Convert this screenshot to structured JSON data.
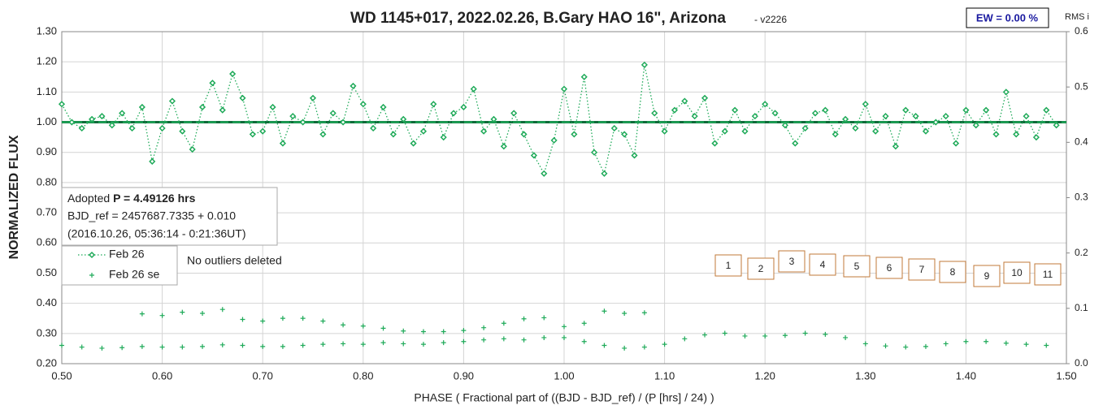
{
  "chart_data": {
    "type": "scatter",
    "title": "WD 1145+017, 2022.02.26, B.Gary HAO 16\", Arizona",
    "subtitle": "- v2226",
    "badge": "EW = 0.00 %",
    "y2_label": "RMS i",
    "xlabel": "PHASE ( Fractional part of ((BJD - BJD_ref) / (P [hrs] / 24) )",
    "ylabel": "NORMALIZED FLUX",
    "info": {
      "prefix": "Adopted ",
      "period": "P = 4.49126 hrs",
      "line2": "BJD_ref = 2457687.7335 + 0.010",
      "line3": "(2016.10.26, 05:36:14 - 0:21:36UT)"
    },
    "note": "No outliers deleted",
    "boxes": [
      "1",
      "2",
      "3",
      "4",
      "5",
      "6",
      "7",
      "8",
      "9",
      "10",
      "11"
    ],
    "hlines": [
      1.0
    ],
    "xlim": [
      0.5,
      1.5
    ],
    "xticks": [
      {
        "value": 0.5,
        "label": "0.50"
      },
      {
        "value": 0.6,
        "label": "0.60"
      },
      {
        "value": 0.7,
        "label": "0.70"
      },
      {
        "value": 0.8,
        "label": "0.80"
      },
      {
        "value": 0.9,
        "label": "0.90"
      },
      {
        "value": 1.0,
        "label": "1.00"
      },
      {
        "value": 1.1,
        "label": "1.10"
      },
      {
        "value": 1.2,
        "label": "1.20"
      },
      {
        "value": 1.3,
        "label": "1.30"
      },
      {
        "value": 1.4,
        "label": "1.40"
      },
      {
        "value": 1.5,
        "label": "1.50"
      }
    ],
    "ylim": [
      0.2,
      1.3
    ],
    "yticks": [
      {
        "value": 0.2,
        "label": "0.20"
      },
      {
        "value": 0.3,
        "label": "0.30"
      },
      {
        "value": 0.4,
        "label": "0.40"
      },
      {
        "value": 0.5,
        "label": "0.50"
      },
      {
        "value": 0.6,
        "label": "0.60"
      },
      {
        "value": 0.7,
        "label": "0.70"
      },
      {
        "value": 0.8,
        "label": "0.80"
      },
      {
        "value": 0.9,
        "label": "0.90"
      },
      {
        "value": 1.0,
        "label": "1.00"
      },
      {
        "value": 1.1,
        "label": "1.10"
      },
      {
        "value": 1.2,
        "label": "1.20"
      },
      {
        "value": 1.3,
        "label": "1.30"
      }
    ],
    "y2lim": [
      0,
      0.6
    ],
    "y2ticks": [
      {
        "value": 0,
        "label": "0.0"
      },
      0.1,
      0.2,
      0.3,
      0.4,
      0.5,
      0.6
    ],
    "grid": true,
    "series": [
      {
        "name": "Feb 26",
        "color": "#1faa59",
        "marker": "diamond",
        "line": "dotted",
        "x": [
          0.5,
          0.51,
          0.52,
          0.53,
          0.54,
          0.55,
          0.56,
          0.57,
          0.58,
          0.59,
          0.6,
          0.61,
          0.62,
          0.63,
          0.64,
          0.65,
          0.66,
          0.67,
          0.68,
          0.69,
          0.7,
          0.71,
          0.72,
          0.73,
          0.74,
          0.75,
          0.76,
          0.77,
          0.78,
          0.79,
          0.8,
          0.81,
          0.82,
          0.83,
          0.84,
          0.85,
          0.86,
          0.87,
          0.88,
          0.89,
          0.9,
          0.91,
          0.92,
          0.93,
          0.94,
          0.95,
          0.96,
          0.97,
          0.98,
          0.99,
          1.0,
          1.01,
          1.02,
          1.03,
          1.04,
          1.05,
          1.06,
          1.07,
          1.08,
          1.09,
          1.1,
          1.11,
          1.12,
          1.13,
          1.14,
          1.15,
          1.16,
          1.17,
          1.18,
          1.19,
          1.2,
          1.21,
          1.22,
          1.23,
          1.24,
          1.25,
          1.26,
          1.27,
          1.28,
          1.29,
          1.3,
          1.31,
          1.32,
          1.33,
          1.34,
          1.35,
          1.36,
          1.37,
          1.38,
          1.39,
          1.4,
          1.41,
          1.42,
          1.43,
          1.44,
          1.45,
          1.46,
          1.47,
          1.48,
          1.49
        ],
        "values": [
          1.06,
          1.0,
          0.98,
          1.01,
          1.02,
          0.99,
          1.03,
          0.98,
          1.05,
          0.87,
          0.98,
          1.07,
          0.97,
          0.91,
          1.05,
          1.13,
          1.04,
          1.16,
          1.08,
          0.96,
          0.97,
          1.05,
          0.93,
          1.02,
          1.0,
          1.08,
          0.96,
          1.03,
          1.0,
          1.12,
          1.06,
          0.98,
          1.05,
          0.96,
          1.01,
          0.93,
          0.97,
          1.06,
          0.95,
          1.03,
          1.05,
          1.11,
          0.97,
          1.01,
          0.92,
          1.03,
          0.96,
          0.89,
          0.83,
          0.94,
          1.11,
          0.96,
          1.15,
          0.9,
          0.83,
          0.98,
          0.96,
          0.89,
          1.19,
          1.03,
          0.97,
          1.04,
          1.07,
          1.02,
          1.08,
          0.93,
          0.97,
          1.04,
          0.97,
          1.02,
          1.06,
          1.03,
          0.99,
          0.93,
          0.98,
          1.03,
          1.04,
          0.96,
          1.01,
          0.98,
          1.06,
          0.97,
          1.02,
          0.92,
          1.04,
          1.02,
          0.97,
          1.0,
          1.02,
          0.93,
          1.04,
          0.99,
          1.04,
          0.96,
          1.1,
          0.96,
          1.02,
          0.95,
          1.04,
          0.99
        ]
      },
      {
        "name": "Feb 26 se",
        "color": "#1faa59",
        "marker": "plus",
        "axis": "y2",
        "x": [
          0.5,
          0.52,
          0.54,
          0.56,
          0.58,
          0.6,
          0.62,
          0.64,
          0.66,
          0.68,
          0.7,
          0.72,
          0.74,
          0.76,
          0.78,
          0.8,
          0.82,
          0.84,
          0.86,
          0.88,
          0.9,
          0.92,
          0.94,
          0.96,
          0.98,
          1.0,
          1.02,
          1.04,
          1.06,
          1.08,
          1.1,
          1.12,
          1.14,
          1.16,
          1.18,
          1.2,
          1.22,
          1.24,
          1.26,
          1.28,
          1.3,
          1.32,
          1.34,
          1.36,
          1.38,
          1.4,
          1.42,
          1.44,
          1.46,
          1.48,
          0.58,
          0.6,
          0.62,
          0.64,
          0.66,
          0.68,
          0.7,
          0.72,
          0.74,
          0.76,
          0.78,
          0.8,
          0.82,
          0.84,
          0.86,
          0.88,
          0.9,
          0.92,
          0.94,
          0.96,
          0.98,
          1.0,
          1.02,
          1.04,
          1.06,
          1.08
        ],
        "values": [
          0.033,
          0.03,
          0.028,
          0.029,
          0.031,
          0.03,
          0.03,
          0.031,
          0.034,
          0.033,
          0.031,
          0.031,
          0.033,
          0.035,
          0.036,
          0.035,
          0.038,
          0.036,
          0.035,
          0.038,
          0.04,
          0.043,
          0.045,
          0.043,
          0.047,
          0.047,
          0.04,
          0.033,
          0.028,
          0.03,
          0.035,
          0.045,
          0.052,
          0.055,
          0.05,
          0.05,
          0.051,
          0.055,
          0.053,
          0.047,
          0.036,
          0.032,
          0.03,
          0.031,
          0.036,
          0.04,
          0.04,
          0.037,
          0.035,
          0.033,
          0.09,
          0.087,
          0.093,
          0.091,
          0.098,
          0.08,
          0.077,
          0.082,
          0.082,
          0.077,
          0.07,
          0.068,
          0.064,
          0.059,
          0.058,
          0.058,
          0.06,
          0.065,
          0.073,
          0.081,
          0.083,
          0.067,
          0.073,
          0.095,
          0.091,
          0.092
        ]
      }
    ]
  }
}
